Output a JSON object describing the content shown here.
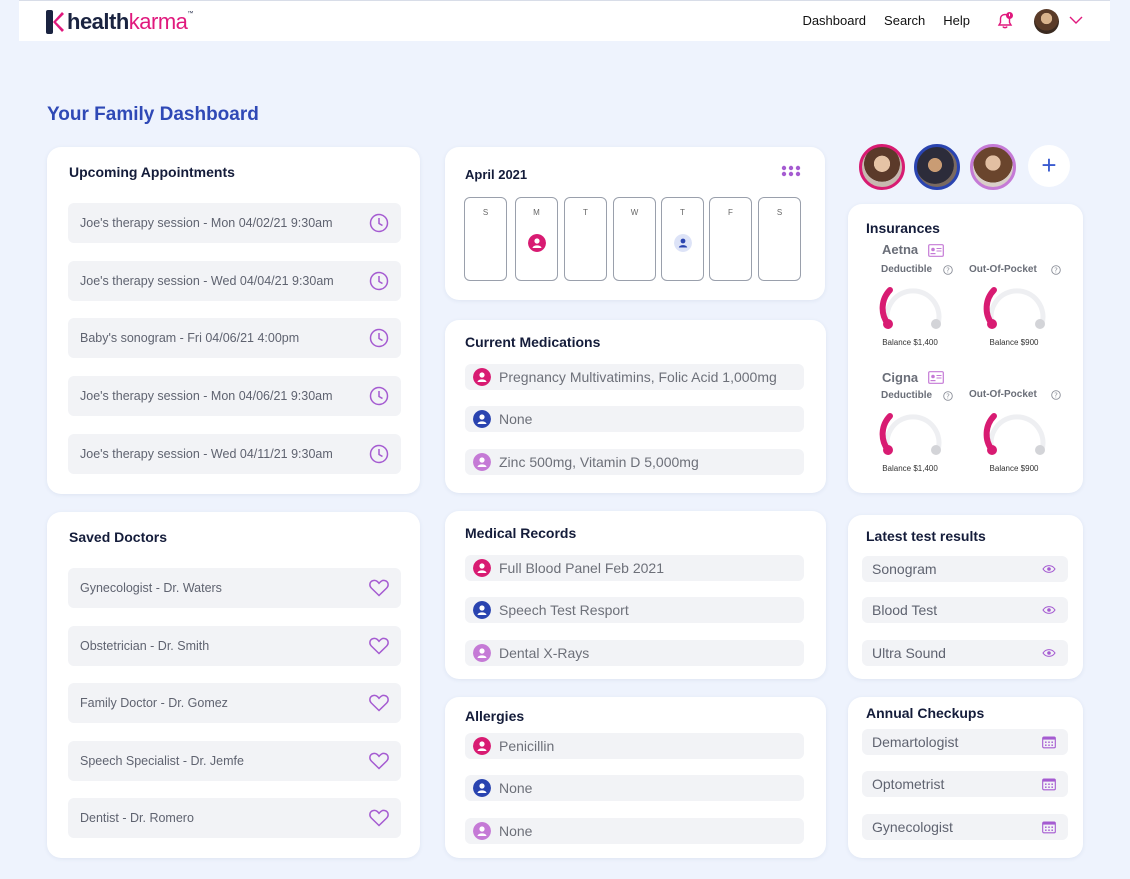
{
  "brand": {
    "part1": "health",
    "part2": "karma",
    "tm": "™"
  },
  "nav": {
    "items": [
      "Dashboard",
      "Search",
      "Help"
    ]
  },
  "page_title": "Your Family Dashboard",
  "appointments": {
    "title": "Upcoming Appointments",
    "items": [
      "Joe's therapy session - Mon 04/02/21 9:30am",
      "Joe's therapy session - Wed 04/04/21 9:30am",
      "Baby's sonogram - Fri 04/06/21 4:00pm",
      "Joe's therapy session - Mon 04/06/21 9:30am",
      "Joe's therapy session - Wed 04/11/21 9:30am"
    ]
  },
  "doctors": {
    "title": "Saved Doctors",
    "items": [
      "Gynecologist - Dr. Waters",
      "Obstetrician - Dr. Smith",
      "Family Doctor - Dr. Gomez",
      "Speech Specialist - Dr. Jemfe",
      "Dentist - Dr. Romero"
    ]
  },
  "calendar": {
    "title": "April 2021",
    "days": [
      "S",
      "M",
      "T",
      "W",
      "T",
      "F",
      "S"
    ]
  },
  "medications": {
    "title": "Current Medications",
    "items": [
      "Pregnancy Multivatimins, Folic Acid 1,000mg",
      "None",
      "Zinc 500mg, Vitamin D 5,000mg"
    ]
  },
  "records": {
    "title": "Medical Records",
    "items": [
      "Full Blood Panel Feb 2021",
      "Speech Test Resport",
      "Dental X-Rays"
    ]
  },
  "allergies": {
    "title": "Allergies",
    "items": [
      "Penicillin",
      "None",
      "None"
    ]
  },
  "insurances": {
    "title": "Insurances",
    "providers": [
      {
        "name": "Aetna",
        "deductible_label": "Deductible",
        "oop_label": "Out-Of-Pocket",
        "deductible_balance": "Balance $1,400",
        "oop_balance": "Balance $900"
      },
      {
        "name": "Cigna",
        "deductible_label": "Deductible",
        "oop_label": "Out-Of-Pocket",
        "deductible_balance": "Balance $1,400",
        "oop_balance": "Balance $900"
      }
    ]
  },
  "tests": {
    "title": "Latest test results",
    "items": [
      "Sonogram",
      "Blood Test",
      "Ultra Sound"
    ]
  },
  "checkups": {
    "title": "Annual Checkups",
    "items": [
      "Demartologist",
      "Optometrist",
      "Gynecologist"
    ]
  },
  "colors": {
    "accent_blue": "#2f49b6",
    "member_pink": "#d81b72",
    "member_navy": "#2a44b0",
    "member_lilac": "#c57ad6",
    "icon_purple": "#a55bd1"
  },
  "icons": {
    "appointment": "clock-icon",
    "doctor": "heart-icon",
    "test": "eye-icon",
    "checkup": "calendar-icon",
    "member": "person-icon"
  }
}
